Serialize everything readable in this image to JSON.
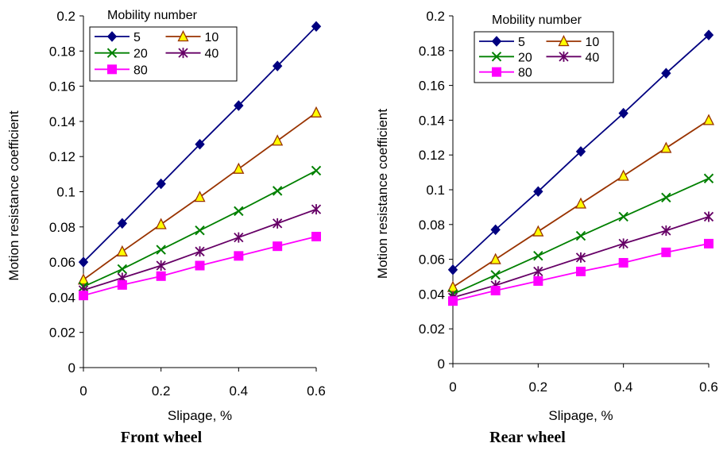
{
  "chart_data": [
    {
      "type": "line",
      "caption": "Front wheel",
      "xlabel": "Slipage, %",
      "ylabel": "Motion resistance coefficient",
      "xlim": [
        0,
        0.6
      ],
      "ylim": [
        0,
        0.2
      ],
      "xticks": [
        "0",
        "0.2",
        "0.4",
        "0.6"
      ],
      "yticks": [
        "0",
        "0.02",
        "0.04",
        "0.06",
        "0.08",
        "0.1",
        "0.12",
        "0.14",
        "0.16",
        "0.18",
        "0.2"
      ],
      "grid": false,
      "legend_title": "Mobility number",
      "legend_position": "top-left",
      "x": [
        0,
        0.1,
        0.2,
        0.3,
        0.4,
        0.5,
        0.6
      ],
      "series": [
        {
          "name": "5",
          "color": "#000080",
          "marker": "diamond",
          "values": [
            0.06,
            0.082,
            0.1045,
            0.127,
            0.149,
            0.1715,
            0.194
          ]
        },
        {
          "name": "10",
          "color": "#993300",
          "marker": "triangle",
          "values": [
            0.05,
            0.066,
            0.0815,
            0.097,
            0.113,
            0.129,
            0.145
          ]
        },
        {
          "name": "20",
          "color": "#008000",
          "marker": "x",
          "values": [
            0.046,
            0.056,
            0.067,
            0.078,
            0.089,
            0.1005,
            0.112
          ]
        },
        {
          "name": "40",
          "color": "#660066",
          "marker": "star",
          "values": [
            0.044,
            0.051,
            0.058,
            0.066,
            0.074,
            0.082,
            0.09
          ]
        },
        {
          "name": "80",
          "color": "#ff00ff",
          "marker": "square",
          "values": [
            0.041,
            0.047,
            0.052,
            0.058,
            0.0635,
            0.069,
            0.0745
          ]
        }
      ]
    },
    {
      "type": "line",
      "caption": "Rear wheel",
      "xlabel": "Slipage, %",
      "ylabel": "Motion resistance coefficient",
      "xlim": [
        0,
        0.6
      ],
      "ylim": [
        0,
        0.2
      ],
      "xticks": [
        "0",
        "0.2",
        "0.4",
        "0.6"
      ],
      "yticks": [
        "0",
        "0.02",
        "0.04",
        "0.06",
        "0.08",
        "0.1",
        "0.12",
        "0.14",
        "0.16",
        "0.18",
        "0.2"
      ],
      "grid": false,
      "legend_title": "Mobility number",
      "legend_position": "top-left",
      "x": [
        0,
        0.1,
        0.2,
        0.3,
        0.4,
        0.5,
        0.6
      ],
      "series": [
        {
          "name": "5",
          "color": "#000080",
          "marker": "diamond",
          "values": [
            0.054,
            0.077,
            0.099,
            0.122,
            0.144,
            0.167,
            0.189
          ]
        },
        {
          "name": "10",
          "color": "#993300",
          "marker": "triangle",
          "values": [
            0.044,
            0.06,
            0.076,
            0.092,
            0.108,
            0.124,
            0.14
          ]
        },
        {
          "name": "20",
          "color": "#008000",
          "marker": "x",
          "values": [
            0.04,
            0.051,
            0.062,
            0.0735,
            0.0845,
            0.0955,
            0.1065
          ]
        },
        {
          "name": "40",
          "color": "#660066",
          "marker": "star",
          "values": [
            0.038,
            0.045,
            0.053,
            0.061,
            0.069,
            0.0765,
            0.0845
          ]
        },
        {
          "name": "80",
          "color": "#ff00ff",
          "marker": "square",
          "values": [
            0.036,
            0.042,
            0.0475,
            0.053,
            0.058,
            0.064,
            0.069
          ]
        }
      ]
    }
  ]
}
